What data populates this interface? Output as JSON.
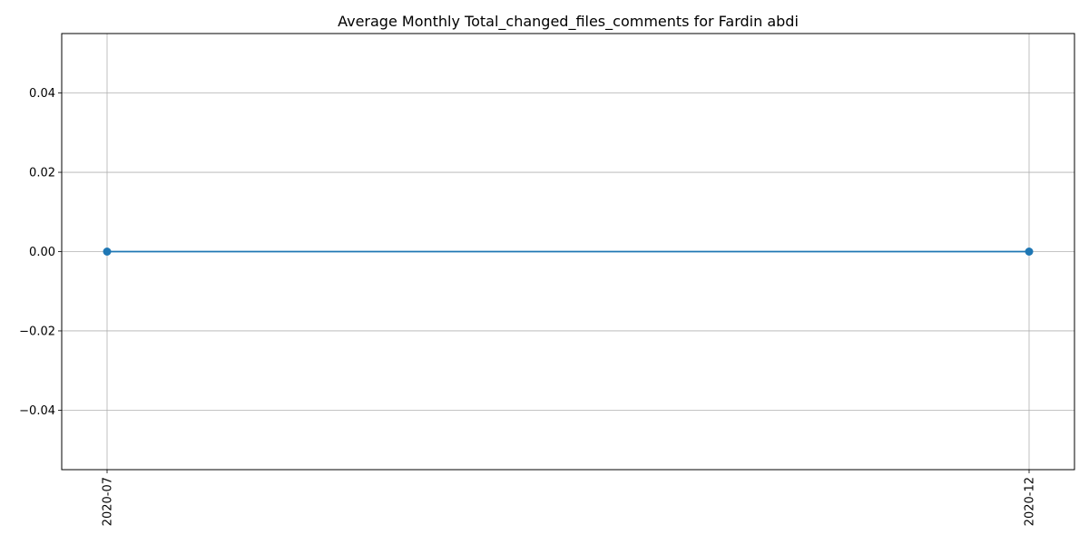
{
  "chart_data": {
    "type": "line",
    "title": "Average Monthly Total_changed_files_comments for Fardin abdi",
    "xlabel": "",
    "ylabel": "",
    "x": [
      "2020-07",
      "2020-12"
    ],
    "series": [
      {
        "values": [
          0.0,
          0.0
        ],
        "color": "#1f77b4",
        "marker": "circle"
      }
    ],
    "ylim": [
      -0.055,
      0.055
    ],
    "yticks": [
      "0.04",
      "0.02",
      "0.00",
      "−0.02",
      "−0.04"
    ],
    "ytick_values": [
      0.04,
      0.02,
      0.0,
      -0.02,
      -0.04
    ],
    "grid": true,
    "legend": "none"
  }
}
